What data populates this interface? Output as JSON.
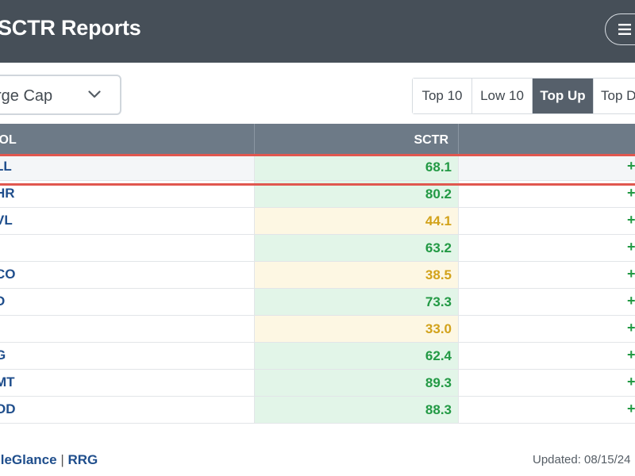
{
  "header": {
    "title": "SCTR Reports"
  },
  "filter": {
    "selected": "rge Cap"
  },
  "tabs": [
    {
      "label": "Top 10",
      "active": false
    },
    {
      "label": "Low 10",
      "active": false
    },
    {
      "label": "Top Up",
      "active": true
    },
    {
      "label": "Top D",
      "active": false
    }
  ],
  "table": {
    "headers": {
      "symbol": "BOL",
      "sctr": "SCTR"
    },
    "rows": [
      {
        "symbol": "LL",
        "sctr": "68.1",
        "level": "green",
        "change": "+"
      },
      {
        "symbol": "HR",
        "sctr": "80.2",
        "level": "green",
        "change": "+"
      },
      {
        "symbol": "VL",
        "sctr": "44.1",
        "level": "yellow",
        "change": "+"
      },
      {
        "symbol": "",
        "sctr": "63.2",
        "level": "green",
        "change": "+"
      },
      {
        "symbol": "CO",
        "sctr": "38.5",
        "level": "yellow",
        "change": "+"
      },
      {
        "symbol": "D",
        "sctr": "73.3",
        "level": "green",
        "change": "+"
      },
      {
        "symbol": "",
        "sctr": "33.0",
        "level": "yellow",
        "change": "+"
      },
      {
        "symbol": "G",
        "sctr": "62.4",
        "level": "green",
        "change": "+"
      },
      {
        "symbol": "MT",
        "sctr": "89.3",
        "level": "green",
        "change": "+"
      },
      {
        "symbol": "OD",
        "sctr": "88.3",
        "level": "green",
        "change": "+"
      }
    ]
  },
  "footer": {
    "link1": "lleGlance",
    "separator": "|",
    "link2": "RRG",
    "updated": "Updated: 08/15/24"
  },
  "colors": {
    "header_bg": "#464f58",
    "active_tab": "#56606b",
    "green_text": "#229944",
    "yellow_text": "#d2a21a",
    "highlight": "#e0574f",
    "link": "#1f4e8c"
  },
  "icons": {
    "menu": "hamburger-menu-icon",
    "dropdown": "chevron-down-icon"
  }
}
